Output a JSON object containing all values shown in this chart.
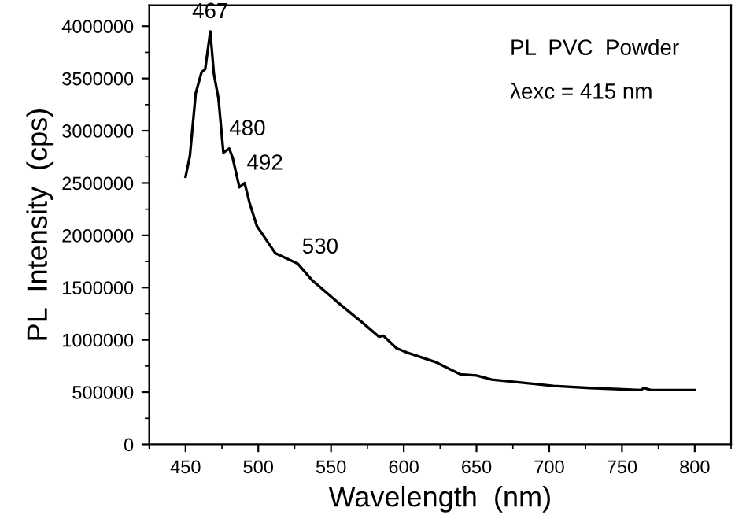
{
  "chart_data": {
    "type": "line",
    "xlabel": "Wavelength  (nm)",
    "ylabel": "PL  Intensity  (cps)",
    "annotations": [
      {
        "text": "467",
        "x": 467,
        "y": 3950000
      },
      {
        "text": "480",
        "x": 480,
        "y": 2830000
      },
      {
        "text": "492",
        "x": 492,
        "y": 2500000
      },
      {
        "text": "530",
        "x": 530,
        "y": 1700000
      },
      "PL  PVC  Powder",
      "λexc = 415 nm"
    ],
    "series": [
      {
        "color": "#000000",
        "x": [
          450,
          453,
          457,
          461,
          463.5,
          467,
          469.5,
          472.6,
          476,
          480,
          482.4,
          487,
          490.6,
          494,
          499,
          511.6,
          527,
          537,
          554.5,
          572,
          583,
          586,
          595,
          602,
          621.5,
          639,
          650,
          660.5,
          682,
          703,
          728,
          763,
          765,
          770,
          800
        ],
        "values": [
          2560000,
          2760000,
          3360000,
          3560000,
          3590000,
          3950000,
          3540000,
          3310000,
          2790000,
          2830000,
          2740000,
          2460000,
          2500000,
          2310000,
          2090000,
          1830000,
          1730000,
          1570000,
          1360000,
          1160000,
          1030000,
          1040000,
          920000,
          880000,
          790000,
          670000,
          660000,
          620000,
          590000,
          560000,
          540000,
          520000,
          540000,
          520000,
          520000
        ]
      }
    ],
    "xlim": [
      425,
      825
    ],
    "ylim": [
      0,
      4200000
    ],
    "xticks": [
      450,
      500,
      550,
      600,
      650,
      700,
      750,
      800
    ],
    "yticks": [
      0,
      500000,
      1000000,
      1500000,
      2000000,
      2500000,
      3000000,
      3500000,
      4000000
    ],
    "grid": false,
    "legend": false,
    "marker": "none",
    "line_style": "solid"
  }
}
